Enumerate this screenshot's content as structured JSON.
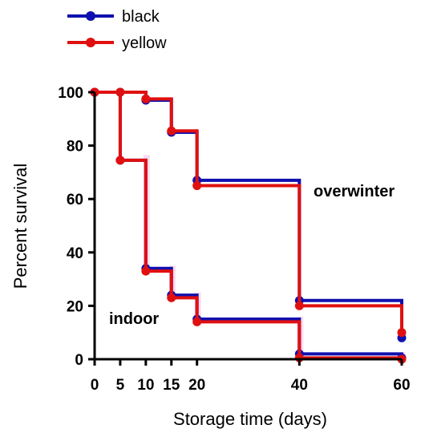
{
  "chart_data": {
    "type": "line",
    "step": true,
    "xlabel": "Storage time (days)",
    "ylabel": "Percent survival",
    "xticks": [
      0,
      5,
      10,
      15,
      20,
      40,
      60
    ],
    "yticks": [
      0,
      20,
      40,
      60,
      80,
      100
    ],
    "xlim": [
      0,
      60
    ],
    "ylim": [
      0,
      100
    ],
    "grid": false,
    "legend_position": "top-left",
    "legend": [
      {
        "name": "black",
        "color": "#1010b0"
      },
      {
        "name": "yellow",
        "color": "#e01010"
      }
    ],
    "annotations": [
      {
        "text": "overwinter",
        "x": 41,
        "y": 63
      },
      {
        "text": "indoor",
        "x": 3,
        "y": 16
      }
    ],
    "series": [
      {
        "name": "black",
        "group": "overwinter",
        "color": "#1010b0",
        "x": [
          0,
          5,
          10,
          15,
          20,
          40,
          60
        ],
        "y": [
          100,
          100,
          97,
          85,
          67,
          22,
          8
        ]
      },
      {
        "name": "yellow",
        "group": "overwinter",
        "color": "#e01010",
        "x": [
          0,
          5,
          10,
          15,
          20,
          40,
          60
        ],
        "y": [
          100,
          100,
          97.5,
          85.5,
          65,
          20,
          10
        ]
      },
      {
        "name": "black",
        "group": "indoor",
        "color": "#1010b0",
        "x": [
          0,
          5,
          10,
          15,
          20,
          40,
          60
        ],
        "y": [
          100,
          74.5,
          34,
          24,
          15,
          2,
          0.5
        ]
      },
      {
        "name": "yellow",
        "group": "indoor",
        "color": "#e01010",
        "x": [
          0,
          5,
          10,
          15,
          20,
          40,
          60
        ],
        "y": [
          100,
          74.5,
          33,
          23,
          14,
          0.5,
          0
        ]
      }
    ]
  }
}
